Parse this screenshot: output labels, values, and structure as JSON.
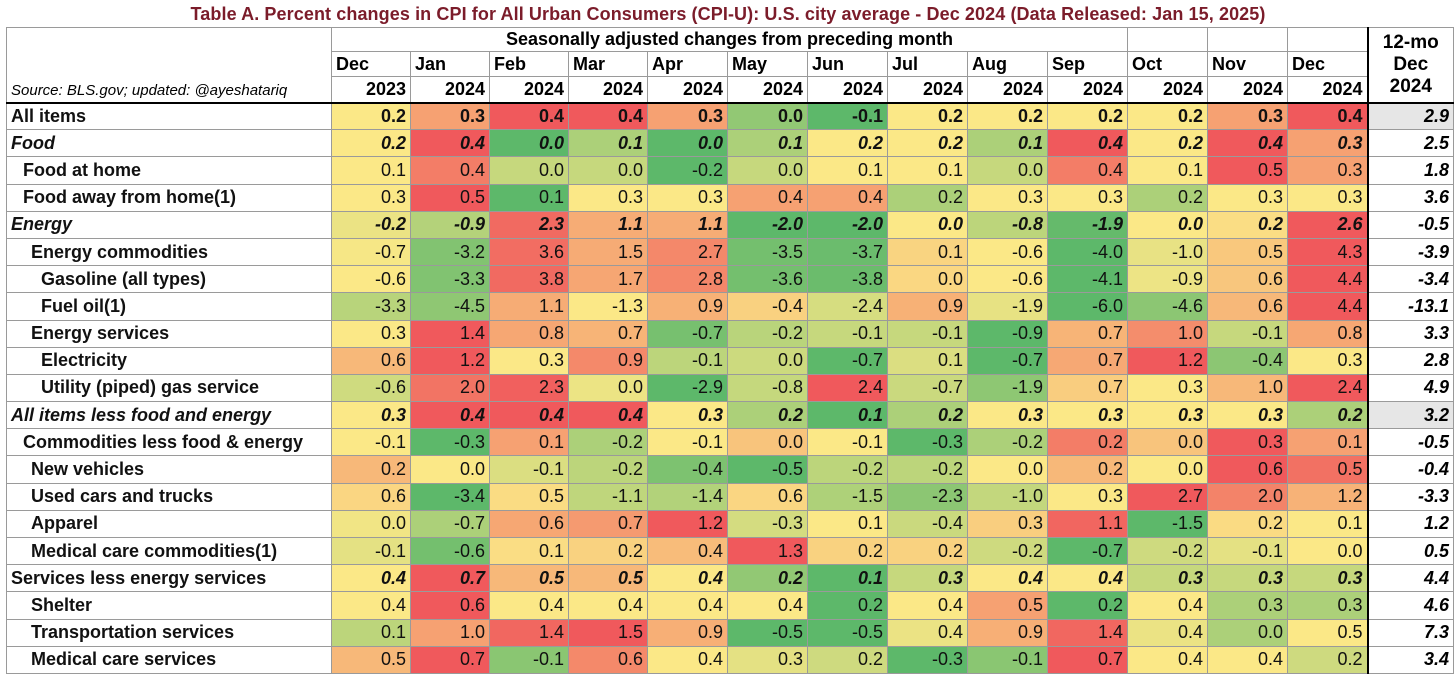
{
  "title": "Table A. Percent changes in CPI for All Urban Consumers (CPI-U): U.S. city average - Dec 2024 (Data Released: Jan 15, 2025)",
  "header": {
    "band": "Seasonally adjusted changes from preceding month",
    "source": "Source: BLS.gov; updated: @ayeshatariq",
    "yy_label_1": "12-mo",
    "yy_label_2": "Dec",
    "yy_label_3": "2024",
    "months": [
      {
        "m": "Dec",
        "y": "2023"
      },
      {
        "m": "Jan",
        "y": "2024"
      },
      {
        "m": "Feb",
        "y": "2024"
      },
      {
        "m": "Mar",
        "y": "2024"
      },
      {
        "m": "Apr",
        "y": "2024"
      },
      {
        "m": "May",
        "y": "2024"
      },
      {
        "m": "Jun",
        "y": "2024"
      },
      {
        "m": "Jul",
        "y": "2024"
      },
      {
        "m": "Aug",
        "y": "2024"
      },
      {
        "m": "Sep",
        "y": "2024"
      },
      {
        "m": "Oct",
        "y": "2024"
      },
      {
        "m": "Nov",
        "y": "2024"
      },
      {
        "m": "Dec",
        "y": "2024"
      }
    ]
  },
  "rows": [
    {
      "label": "All items",
      "indent": 0,
      "style": "bold",
      "values": [
        "0.2",
        "0.3",
        "0.4",
        "0.4",
        "0.3",
        "0.0",
        "-0.1",
        "0.2",
        "0.2",
        "0.2",
        "0.2",
        "0.3",
        "0.4"
      ],
      "yy": "2.9",
      "yy_shaded": true
    },
    {
      "label": "Food",
      "indent": 0,
      "style": "italic",
      "values": [
        "0.2",
        "0.4",
        "0.0",
        "0.1",
        "0.0",
        "0.1",
        "0.2",
        "0.2",
        "0.1",
        "0.4",
        "0.2",
        "0.4",
        "0.3"
      ],
      "yy": "2.5"
    },
    {
      "label": "Food at home",
      "indent": 1,
      "style": "normal",
      "values": [
        "0.1",
        "0.4",
        "0.0",
        "0.0",
        "-0.2",
        "0.0",
        "0.1",
        "0.1",
        "0.0",
        "0.4",
        "0.1",
        "0.5",
        "0.3"
      ],
      "yy": "1.8"
    },
    {
      "label": "Food away from home(1)",
      "indent": 1,
      "style": "normal",
      "values": [
        "0.3",
        "0.5",
        "0.1",
        "0.3",
        "0.3",
        "0.4",
        "0.4",
        "0.2",
        "0.3",
        "0.3",
        "0.2",
        "0.3",
        "0.3"
      ],
      "yy": "3.6"
    },
    {
      "label": "Energy",
      "indent": 0,
      "style": "italic",
      "values": [
        "-0.2",
        "-0.9",
        "2.3",
        "1.1",
        "1.1",
        "-2.0",
        "-2.0",
        "0.0",
        "-0.8",
        "-1.9",
        "0.0",
        "0.2",
        "2.6"
      ],
      "yy": "-0.5"
    },
    {
      "label": "Energy commodities",
      "indent": 2,
      "style": "normal",
      "values": [
        "-0.7",
        "-3.2",
        "3.6",
        "1.5",
        "2.7",
        "-3.5",
        "-3.7",
        "0.1",
        "-0.6",
        "-4.0",
        "-1.0",
        "0.5",
        "4.3"
      ],
      "yy": "-3.9"
    },
    {
      "label": "Gasoline (all types)",
      "indent": 3,
      "style": "normal",
      "values": [
        "-0.6",
        "-3.3",
        "3.8",
        "1.7",
        "2.8",
        "-3.6",
        "-3.8",
        "0.0",
        "-0.6",
        "-4.1",
        "-0.9",
        "0.6",
        "4.4"
      ],
      "yy": "-3.4"
    },
    {
      "label": "Fuel oil(1)",
      "indent": 3,
      "style": "normal",
      "values": [
        "-3.3",
        "-4.5",
        "1.1",
        "-1.3",
        "0.9",
        "-0.4",
        "-2.4",
        "0.9",
        "-1.9",
        "-6.0",
        "-4.6",
        "0.6",
        "4.4"
      ],
      "yy": "-13.1"
    },
    {
      "label": "Energy services",
      "indent": 2,
      "style": "normal",
      "values": [
        "0.3",
        "1.4",
        "0.8",
        "0.7",
        "-0.7",
        "-0.2",
        "-0.1",
        "-0.1",
        "-0.9",
        "0.7",
        "1.0",
        "-0.1",
        "0.8"
      ],
      "yy": "3.3"
    },
    {
      "label": "Electricity",
      "indent": 3,
      "style": "normal",
      "values": [
        "0.6",
        "1.2",
        "0.3",
        "0.9",
        "-0.1",
        "0.0",
        "-0.7",
        "0.1",
        "-0.7",
        "0.7",
        "1.2",
        "-0.4",
        "0.3"
      ],
      "yy": "2.8"
    },
    {
      "label": "Utility (piped) gas service",
      "indent": 3,
      "style": "normal",
      "values": [
        "-0.6",
        "2.0",
        "2.3",
        "0.0",
        "-2.9",
        "-0.8",
        "2.4",
        "-0.7",
        "-1.9",
        "0.7",
        "0.3",
        "1.0",
        "2.4"
      ],
      "yy": "4.9"
    },
    {
      "label": "All items less food and energy",
      "indent": 0,
      "style": "italic",
      "values": [
        "0.3",
        "0.4",
        "0.4",
        "0.4",
        "0.3",
        "0.2",
        "0.1",
        "0.2",
        "0.3",
        "0.3",
        "0.3",
        "0.3",
        "0.2"
      ],
      "yy": "3.2",
      "yy_shaded": true
    },
    {
      "label": "Commodities less food & energy",
      "indent": 1,
      "style": "normal",
      "values": [
        "-0.1",
        "-0.3",
        "0.1",
        "-0.2",
        "-0.1",
        "0.0",
        "-0.1",
        "-0.3",
        "-0.2",
        "0.2",
        "0.0",
        "0.3",
        "0.1"
      ],
      "yy": "-0.5"
    },
    {
      "label": "New vehicles",
      "indent": 2,
      "style": "normal",
      "values": [
        "0.2",
        "0.0",
        "-0.1",
        "-0.2",
        "-0.4",
        "-0.5",
        "-0.2",
        "-0.2",
        "0.0",
        "0.2",
        "0.0",
        "0.6",
        "0.5"
      ],
      "yy": "-0.4"
    },
    {
      "label": "Used cars and trucks",
      "indent": 2,
      "style": "normal",
      "values": [
        "0.6",
        "-3.4",
        "0.5",
        "-1.1",
        "-1.4",
        "0.6",
        "-1.5",
        "-2.3",
        "-1.0",
        "0.3",
        "2.7",
        "2.0",
        "1.2"
      ],
      "yy": "-3.3"
    },
    {
      "label": "Apparel",
      "indent": 2,
      "style": "normal",
      "values": [
        "0.0",
        "-0.7",
        "0.6",
        "0.7",
        "1.2",
        "-0.3",
        "0.1",
        "-0.4",
        "0.3",
        "1.1",
        "-1.5",
        "0.2",
        "0.1"
      ],
      "yy": "1.2"
    },
    {
      "label": "Medical care commodities(1)",
      "indent": 2,
      "style": "normal",
      "values": [
        "-0.1",
        "-0.6",
        "0.1",
        "0.2",
        "0.4",
        "1.3",
        "0.2",
        "0.2",
        "-0.2",
        "-0.7",
        "-0.2",
        "-0.1",
        "0.0"
      ],
      "yy": "0.5"
    },
    {
      "label": "Services less energy services",
      "indent": 0,
      "style": "bolditalic",
      "values": [
        "0.4",
        "0.7",
        "0.5",
        "0.5",
        "0.4",
        "0.2",
        "0.1",
        "0.3",
        "0.4",
        "0.4",
        "0.3",
        "0.3",
        "0.3"
      ],
      "yy": "4.4"
    },
    {
      "label": "Shelter",
      "indent": 2,
      "style": "normal",
      "values": [
        "0.4",
        "0.6",
        "0.4",
        "0.4",
        "0.4",
        "0.4",
        "0.2",
        "0.4",
        "0.5",
        "0.2",
        "0.4",
        "0.3",
        "0.3"
      ],
      "yy": "4.6"
    },
    {
      "label": "Transportation services",
      "indent": 2,
      "style": "normal",
      "values": [
        "0.1",
        "1.0",
        "1.4",
        "1.5",
        "0.9",
        "-0.5",
        "-0.5",
        "0.4",
        "0.9",
        "1.4",
        "0.4",
        "0.0",
        "0.5"
      ],
      "yy": "7.3"
    },
    {
      "label": "Medical care services",
      "indent": 2,
      "style": "normal",
      "values": [
        "0.5",
        "0.7",
        "-0.1",
        "0.6",
        "0.4",
        "0.3",
        "0.2",
        "-0.3",
        "-0.1",
        "0.7",
        "0.4",
        "0.4",
        "0.2"
      ],
      "yy": "3.4"
    }
  ],
  "colors": {
    "low": "#5db86a",
    "mid": "#fbe887",
    "high": "#f0595c",
    "title": "#7b1c2a"
  }
}
